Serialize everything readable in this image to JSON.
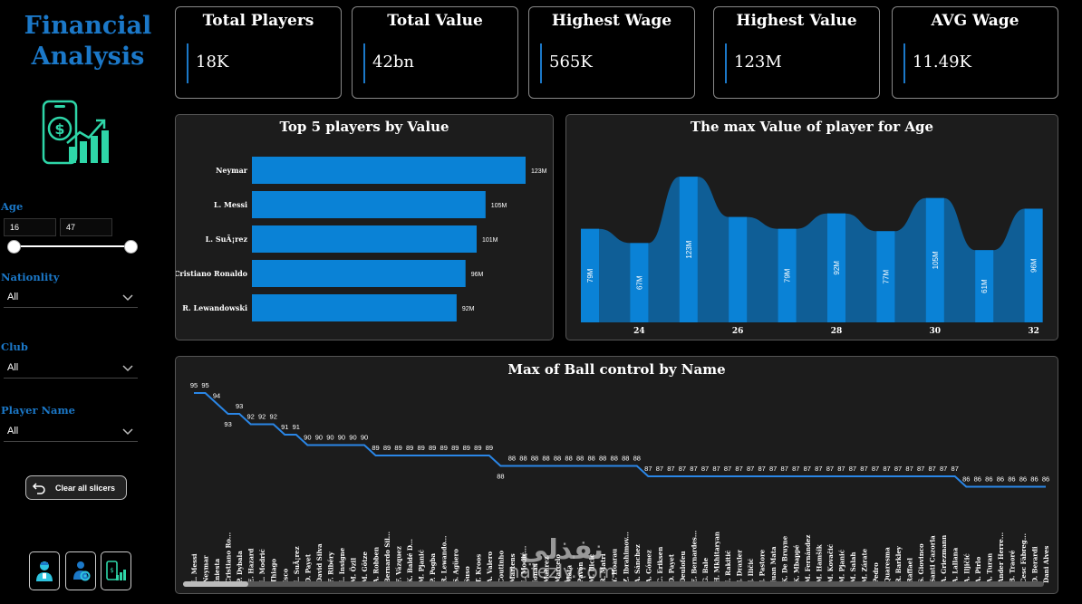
{
  "title": {
    "line1": "Financial",
    "line2": "Analysis"
  },
  "logo": {
    "icon": "phone-dollar-growth-icon"
  },
  "slicers": {
    "age": {
      "label": "Age",
      "min": "16",
      "max": "47"
    },
    "nationality": {
      "label": "Nationlity",
      "value": "All"
    },
    "club": {
      "label": "Club",
      "value": "All"
    },
    "player_name": {
      "label": "Player Name",
      "value": "All"
    }
  },
  "clear_button": {
    "label": "Clear all slicers",
    "icon": "undo-icon"
  },
  "nav_buttons": [
    {
      "icon": "player-icon"
    },
    {
      "icon": "people-gear-icon"
    },
    {
      "icon": "phone-chart-icon"
    }
  ],
  "cards": [
    {
      "title": "Total Players",
      "value": "18K"
    },
    {
      "title": "Total Value",
      "value": "42bn"
    },
    {
      "title": "Highest Wage",
      "value": "565K"
    },
    {
      "title": "Highest Value",
      "value": "123M"
    },
    {
      "title": "AVG Wage",
      "value": "11.49K"
    }
  ],
  "colors": {
    "accent": "#1b78c8",
    "bar": "#0a82d6",
    "line": "#2a86e6"
  },
  "watermark": {
    "arabic": "نفذلي",
    "latin": "nafezly.com"
  },
  "chart_data": [
    {
      "type": "bar",
      "orientation": "horizontal",
      "title": "Top 5 players by Value",
      "categories": [
        "Neymar",
        "L. Messi",
        "L. SuÃ¡rez",
        "Cristiano Ronaldo",
        "R. Lewandowski"
      ],
      "values": [
        123,
        105,
        101,
        96,
        92
      ],
      "data_labels": [
        "123M",
        "105M",
        "101M",
        "96M",
        "92M"
      ]
    },
    {
      "type": "area",
      "title": "The max Value of player for Age",
      "x": [
        23,
        24,
        25,
        26,
        27,
        28,
        29,
        30,
        31,
        32
      ],
      "values": [
        79,
        67,
        123,
        89,
        79,
        92,
        77,
        105,
        61,
        96
      ],
      "data_labels": [
        "79M",
        "67M",
        "123M",
        "",
        "79M",
        "92M",
        "77M",
        "105M",
        "61M",
        "96M"
      ],
      "x_ticks": [
        "24",
        "26",
        "28",
        "30",
        "32"
      ],
      "ylim": [
        0,
        130
      ]
    },
    {
      "type": "line",
      "title": "Max of Ball control by Name",
      "categories": [
        "L. Messi",
        "Neymar",
        "Iniesta",
        "Cristiano Ro...",
        "P. Dybala",
        "E. Hazard",
        "L. Modrić",
        "Thiago",
        "Isco",
        "L. SuÃ¡rez",
        "D. Payet",
        "David Silva",
        "F. Ribéry",
        "L. Insigne",
        "M. Özil",
        "M. Götze",
        "A. Robben",
        "Bernardo Sil...",
        "F. Vázquez",
        "K. Baldé D...",
        "M. Pjanić",
        "P. Pogba",
        "R. Lewando...",
        "S. Agüero",
        "Suso",
        "T. Kroos",
        "A. Valero",
        "Coutinho",
        "Martens",
        "L. Modić...",
        "Jonas",
        "Mahrez",
        "Marcelo",
        "Mata",
        "Pavón",
        "M. Ilicic",
        "R. Matri",
        "Y. Hoarau",
        "Z. Ibrahimov...",
        "A. Sánchez",
        "A. Gómez",
        "C. Eriksen",
        "D. Payet",
        "Deulofeu",
        "E. Bernardes...",
        "G. Bale",
        "H. Mkhitaryan",
        "I. Rakitić",
        "J. Draxler",
        "J. Iličić",
        "J. Pastore",
        "Juan Mata",
        "K. De Bruyne",
        "K. Mbappé",
        "M. Fernández",
        "M. Hamšík",
        "M. Kovačić",
        "M. Pjanić",
        "M. Salah",
        "M. Zárate",
        "Pedro",
        "Quaresma",
        "R. Barkley",
        "Raffael",
        "S. Giovinco",
        "Santi Cazorla",
        "A. Griezmann",
        "A. Lallana",
        "A. Iljičić",
        "A. Pirlo",
        "A. Turan",
        "Ander Herre...",
        "B. Traoré",
        "Cesc Fàbreg...",
        "D. Berardi",
        "Dani Alves"
      ],
      "values": [
        95,
        95,
        94,
        93,
        93,
        92,
        92,
        92,
        91,
        91,
        90,
        90,
        90,
        90,
        90,
        90,
        89,
        89,
        89,
        89,
        89,
        89,
        89,
        89,
        89,
        89,
        89,
        88,
        88,
        88,
        88,
        88,
        88,
        88,
        88,
        88,
        88,
        88,
        88,
        88,
        87,
        87,
        87,
        87,
        87,
        87,
        87,
        87,
        87,
        87,
        87,
        87,
        87,
        87,
        87,
        87,
        87,
        87,
        87,
        87,
        87,
        87,
        87,
        87,
        87,
        87,
        87,
        87,
        86,
        86,
        86,
        86,
        86,
        86,
        86,
        86
      ],
      "ylim": [
        84,
        96
      ]
    }
  ]
}
